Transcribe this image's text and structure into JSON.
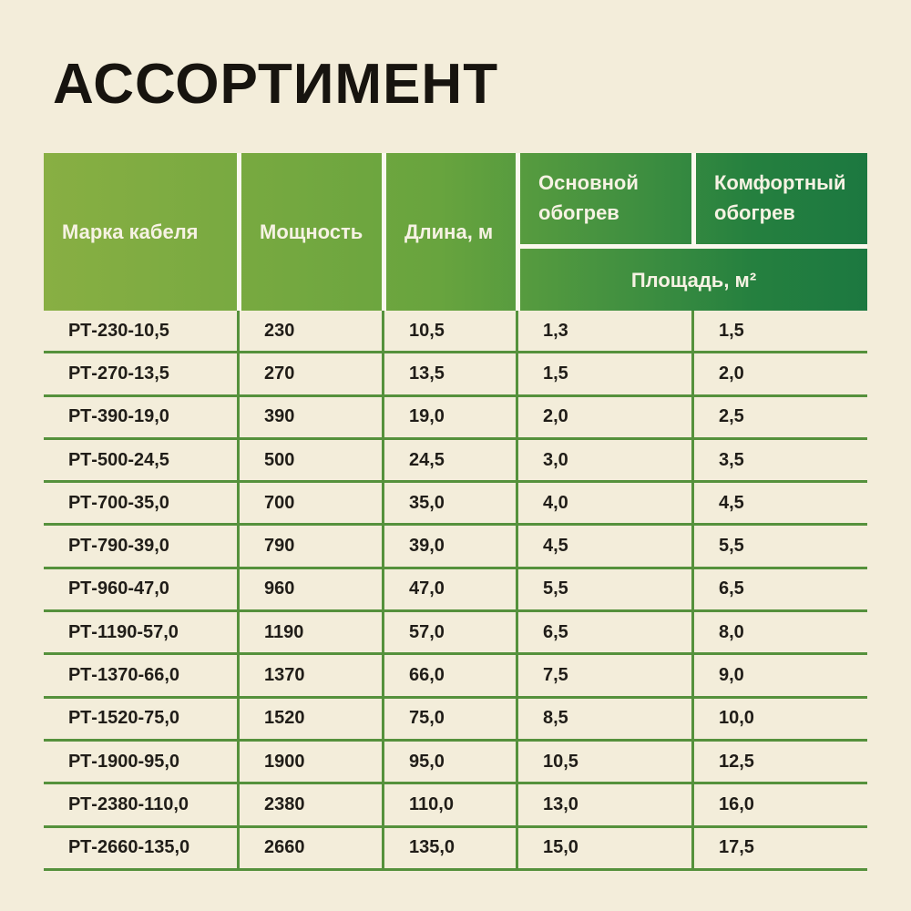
{
  "page": {
    "title": "АССОРТИМЕНТ"
  },
  "colors": {
    "background": "#f3edda",
    "header_gradient_left": "#88af43",
    "header_gradient_right": "#1c7840",
    "header_separator": "#fbf8ee",
    "grid_line_green": "#55913c",
    "header_text": "#f6f2e3",
    "body_text": "#201d18"
  },
  "chart_data": {
    "type": "table",
    "title": "АССОРТИМЕНТ",
    "columns": [
      "Марка кабеля",
      "Мощность",
      "Длина, м",
      "Основной обогрев",
      "Комфортный обогрев"
    ],
    "subheader_span_last_two_columns": "Площадь, м²",
    "rows": [
      [
        "РТ-230-10,5",
        "230",
        "10,5",
        "1,3",
        "1,5"
      ],
      [
        "РТ-270-13,5",
        "270",
        "13,5",
        "1,5",
        "2,0"
      ],
      [
        "РТ-390-19,0",
        "390",
        "19,0",
        "2,0",
        "2,5"
      ],
      [
        "РТ-500-24,5",
        "500",
        "24,5",
        "3,0",
        "3,5"
      ],
      [
        "РТ-700-35,0",
        "700",
        "35,0",
        "4,0",
        "4,5"
      ],
      [
        "РТ-790-39,0",
        "790",
        "39,0",
        "4,5",
        "5,5"
      ],
      [
        "РТ-960-47,0",
        "960",
        "47,0",
        "5,5",
        "6,5"
      ],
      [
        "РТ-1190-57,0",
        "1190",
        "57,0",
        "6,5",
        "8,0"
      ],
      [
        "РТ-1370-66,0",
        "1370",
        "66,0",
        "7,5",
        "9,0"
      ],
      [
        "РТ-1520-75,0",
        "1520",
        "75,0",
        "8,5",
        "10,0"
      ],
      [
        "РТ-1900-95,0",
        "1900",
        "95,0",
        "10,5",
        "12,5"
      ],
      [
        "РТ-2380-110,0",
        "2380",
        "110,0",
        "13,0",
        "16,0"
      ],
      [
        "РТ-2660-135,0",
        "2660",
        "135,0",
        "15,0",
        "17,5"
      ]
    ]
  }
}
